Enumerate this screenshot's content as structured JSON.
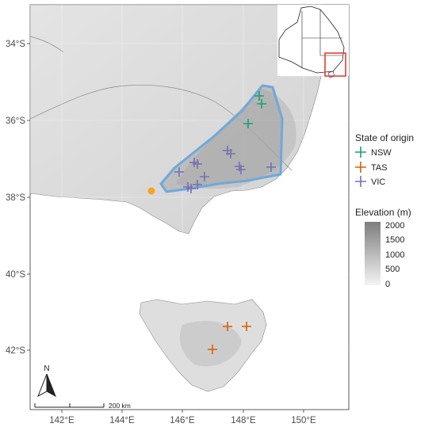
{
  "map": {
    "x_ticks": [
      "142°E",
      "144°E",
      "146°E",
      "148°E",
      "150°E"
    ],
    "y_ticks": [
      "34°S",
      "36°S",
      "38°S",
      "40°S",
      "42°S"
    ],
    "north_label": "N",
    "scale_label": "200 km"
  },
  "legend": {
    "state_title": "State of origin",
    "states": [
      {
        "label": "NSW",
        "color": "#1b9e77"
      },
      {
        "label": "TAS",
        "color": "#d95f02"
      },
      {
        "label": "VIC",
        "color": "#7570b3"
      }
    ],
    "elevation_title": "Elevation (m)",
    "elevation_ticks": [
      "2000",
      "1500",
      "1000",
      "500",
      "0"
    ]
  },
  "colors": {
    "region_outline": "#6fa8dc",
    "marker_point": "#f5a623",
    "inset_box": "#e0302a"
  }
}
